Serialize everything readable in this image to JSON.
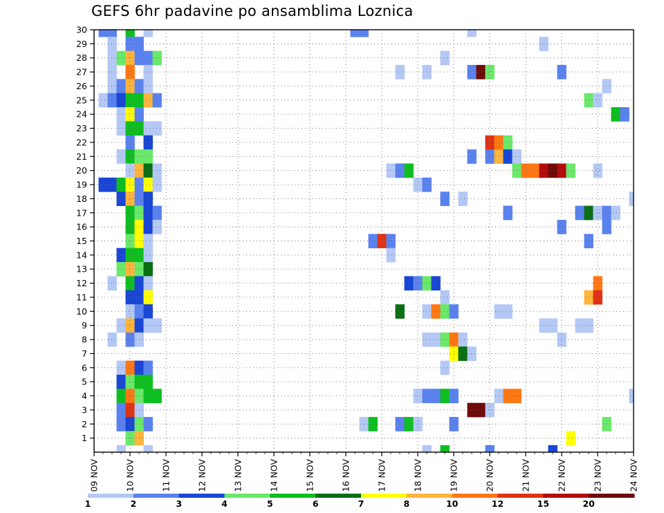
{
  "chart_data": {
    "type": "heatmap",
    "title": "GEFS 6hr padavine po ansamblima Loznica",
    "x_tick_labels": [
      "09 NOV",
      "10 NOV",
      "11 NOV",
      "12 NOV",
      "13 NOV",
      "14 NOV",
      "15 NOV",
      "16 NOV",
      "17 NOV",
      "18 NOV",
      "19 NOV",
      "20 NOV",
      "21 NOV",
      "22 NOV",
      "23 NOV",
      "24 NOV"
    ],
    "xlim": [
      0,
      60
    ],
    "ylim": [
      0,
      30
    ],
    "y_ticks": [
      1,
      2,
      3,
      4,
      5,
      6,
      7,
      8,
      9,
      10,
      11,
      12,
      13,
      14,
      15,
      16,
      17,
      18,
      19,
      20,
      21,
      22,
      23,
      24,
      25,
      26,
      27,
      28,
      29,
      30
    ],
    "x_unit": "6-hour steps since 09 NOV 00Z (4 steps per day)",
    "y_unit": "ensemble member",
    "legend_levels": [
      "1",
      "2",
      "3",
      "4",
      "5",
      "6",
      "7",
      "8",
      "10",
      "12",
      "15",
      "20"
    ],
    "legend_colors": [
      "#b4c8f5",
      "#5a82ee",
      "#1a46d6",
      "#6ae86a",
      "#0ebe20",
      "#0a6e14",
      "#ffff00",
      "#ffb43c",
      "#ff7814",
      "#e03214",
      "#b40a0a",
      "#6e0a0a"
    ],
    "cells": [
      [
        1,
        30,
        1
      ],
      [
        2,
        30,
        1
      ],
      [
        4,
        30,
        4
      ],
      [
        6,
        30,
        0
      ],
      [
        29,
        30,
        1
      ],
      [
        30,
        30,
        1
      ],
      [
        42,
        30,
        0
      ],
      [
        2,
        29,
        0
      ],
      [
        4,
        29,
        1
      ],
      [
        5,
        29,
        1
      ],
      [
        50,
        29,
        0
      ],
      [
        2,
        28,
        0
      ],
      [
        3,
        28,
        3
      ],
      [
        4,
        28,
        7
      ],
      [
        5,
        28,
        1
      ],
      [
        6,
        28,
        1
      ],
      [
        7,
        28,
        3
      ],
      [
        39,
        28,
        0
      ],
      [
        2,
        27,
        0
      ],
      [
        4,
        27,
        8
      ],
      [
        6,
        27,
        0
      ],
      [
        34,
        27,
        0
      ],
      [
        37,
        27,
        0
      ],
      [
        42,
        27,
        1
      ],
      [
        43,
        27,
        11
      ],
      [
        44,
        27,
        3
      ],
      [
        52,
        27,
        1
      ],
      [
        2,
        26,
        0
      ],
      [
        3,
        26,
        1
      ],
      [
        4,
        26,
        7
      ],
      [
        5,
        26,
        1
      ],
      [
        6,
        26,
        0
      ],
      [
        57,
        26,
        0
      ],
      [
        1,
        25,
        0
      ],
      [
        2,
        25,
        1
      ],
      [
        3,
        25,
        2
      ],
      [
        4,
        25,
        4
      ],
      [
        5,
        25,
        4
      ],
      [
        6,
        25,
        7
      ],
      [
        7,
        25,
        1
      ],
      [
        55,
        25,
        3
      ],
      [
        56,
        25,
        0
      ],
      [
        3,
        24,
        0
      ],
      [
        4,
        24,
        6
      ],
      [
        5,
        24,
        1
      ],
      [
        58,
        24,
        4
      ],
      [
        59,
        24,
        1
      ],
      [
        3,
        23,
        0
      ],
      [
        4,
        23,
        4
      ],
      [
        5,
        23,
        4
      ],
      [
        6,
        23,
        0
      ],
      [
        7,
        23,
        0
      ],
      [
        4,
        22,
        1
      ],
      [
        6,
        22,
        2
      ],
      [
        44,
        22,
        9
      ],
      [
        45,
        22,
        8
      ],
      [
        46,
        22,
        3
      ],
      [
        3,
        21,
        0
      ],
      [
        4,
        21,
        4
      ],
      [
        5,
        21,
        3
      ],
      [
        6,
        21,
        3
      ],
      [
        42,
        21,
        1
      ],
      [
        44,
        21,
        1
      ],
      [
        45,
        21,
        7
      ],
      [
        46,
        21,
        2
      ],
      [
        47,
        21,
        0
      ],
      [
        4,
        20,
        0
      ],
      [
        5,
        20,
        7
      ],
      [
        6,
        20,
        5
      ],
      [
        7,
        20,
        0
      ],
      [
        33,
        20,
        0
      ],
      [
        34,
        20,
        1
      ],
      [
        35,
        20,
        4
      ],
      [
        47,
        20,
        3
      ],
      [
        48,
        20,
        8
      ],
      [
        49,
        20,
        8
      ],
      [
        50,
        20,
        10
      ],
      [
        51,
        20,
        11
      ],
      [
        52,
        20,
        10
      ],
      [
        53,
        20,
        3
      ],
      [
        56,
        20,
        0
      ],
      [
        1,
        19,
        2
      ],
      [
        2,
        19,
        2
      ],
      [
        3,
        19,
        4
      ],
      [
        4,
        19,
        6
      ],
      [
        5,
        19,
        1
      ],
      [
        6,
        19,
        6
      ],
      [
        7,
        19,
        0
      ],
      [
        36,
        19,
        0
      ],
      [
        37,
        19,
        1
      ],
      [
        3,
        18,
        2
      ],
      [
        4,
        18,
        7
      ],
      [
        5,
        18,
        1
      ],
      [
        6,
        18,
        2
      ],
      [
        39,
        18,
        1
      ],
      [
        41,
        18,
        0
      ],
      [
        60,
        18,
        0
      ],
      [
        4,
        17,
        4
      ],
      [
        5,
        17,
        3
      ],
      [
        6,
        17,
        2
      ],
      [
        7,
        17,
        1
      ],
      [
        46,
        17,
        1
      ],
      [
        54,
        17,
        1
      ],
      [
        55,
        17,
        5
      ],
      [
        56,
        17,
        0
      ],
      [
        57,
        17,
        1
      ],
      [
        58,
        17,
        0
      ],
      [
        4,
        16,
        4
      ],
      [
        5,
        16,
        6
      ],
      [
        6,
        16,
        2
      ],
      [
        7,
        16,
        0
      ],
      [
        52,
        16,
        1
      ],
      [
        57,
        16,
        1
      ],
      [
        4,
        15,
        3
      ],
      [
        5,
        15,
        6
      ],
      [
        6,
        15,
        0
      ],
      [
        31,
        15,
        1
      ],
      [
        32,
        15,
        9
      ],
      [
        33,
        15,
        1
      ],
      [
        55,
        15,
        1
      ],
      [
        3,
        14,
        2
      ],
      [
        4,
        14,
        4
      ],
      [
        5,
        14,
        4
      ],
      [
        6,
        14,
        0
      ],
      [
        33,
        14,
        0
      ],
      [
        3,
        13,
        3
      ],
      [
        4,
        13,
        7
      ],
      [
        5,
        13,
        3
      ],
      [
        6,
        13,
        5
      ],
      [
        2,
        12,
        0
      ],
      [
        4,
        12,
        4
      ],
      [
        5,
        12,
        2
      ],
      [
        6,
        12,
        0
      ],
      [
        35,
        12,
        2
      ],
      [
        36,
        12,
        1
      ],
      [
        37,
        12,
        3
      ],
      [
        38,
        12,
        2
      ],
      [
        56,
        12,
        8
      ],
      [
        4,
        11,
        2
      ],
      [
        5,
        11,
        2
      ],
      [
        6,
        11,
        6
      ],
      [
        39,
        11,
        0
      ],
      [
        55,
        11,
        7
      ],
      [
        56,
        11,
        9
      ],
      [
        4,
        10,
        0
      ],
      [
        5,
        10,
        1
      ],
      [
        6,
        10,
        2
      ],
      [
        34,
        10,
        5
      ],
      [
        37,
        10,
        0
      ],
      [
        38,
        10,
        8
      ],
      [
        39,
        10,
        3
      ],
      [
        40,
        10,
        1
      ],
      [
        45,
        10,
        0
      ],
      [
        46,
        10,
        0
      ],
      [
        3,
        9,
        0
      ],
      [
        4,
        9,
        7
      ],
      [
        5,
        9,
        2
      ],
      [
        6,
        9,
        0
      ],
      [
        7,
        9,
        0
      ],
      [
        50,
        9,
        0
      ],
      [
        51,
        9,
        0
      ],
      [
        54,
        9,
        0
      ],
      [
        55,
        9,
        0
      ],
      [
        2,
        8,
        0
      ],
      [
        4,
        8,
        1
      ],
      [
        5,
        8,
        0
      ],
      [
        37,
        8,
        0
      ],
      [
        38,
        8,
        0
      ],
      [
        39,
        8,
        3
      ],
      [
        40,
        8,
        8
      ],
      [
        41,
        8,
        0
      ],
      [
        52,
        8,
        0
      ],
      [
        40,
        7,
        6
      ],
      [
        41,
        7,
        5
      ],
      [
        42,
        7,
        0
      ],
      [
        3,
        6,
        0
      ],
      [
        4,
        6,
        8
      ],
      [
        5,
        6,
        2
      ],
      [
        6,
        6,
        1
      ],
      [
        39,
        6,
        0
      ],
      [
        3,
        5,
        2
      ],
      [
        4,
        5,
        3
      ],
      [
        5,
        5,
        4
      ],
      [
        6,
        5,
        4
      ],
      [
        3,
        4,
        4
      ],
      [
        4,
        4,
        8
      ],
      [
        5,
        4,
        3
      ],
      [
        6,
        4,
        4
      ],
      [
        7,
        4,
        4
      ],
      [
        36,
        4,
        0
      ],
      [
        37,
        4,
        1
      ],
      [
        38,
        4,
        1
      ],
      [
        39,
        4,
        4
      ],
      [
        40,
        4,
        1
      ],
      [
        45,
        4,
        0
      ],
      [
        46,
        4,
        8
      ],
      [
        47,
        4,
        8
      ],
      [
        60,
        4,
        0
      ],
      [
        3,
        3,
        1
      ],
      [
        4,
        3,
        9
      ],
      [
        5,
        3,
        0
      ],
      [
        42,
        3,
        11
      ],
      [
        43,
        3,
        11
      ],
      [
        44,
        3,
        0
      ],
      [
        3,
        2,
        1
      ],
      [
        4,
        2,
        2
      ],
      [
        5,
        2,
        3
      ],
      [
        6,
        2,
        1
      ],
      [
        30,
        2,
        0
      ],
      [
        31,
        2,
        4
      ],
      [
        34,
        2,
        1
      ],
      [
        35,
        2,
        4
      ],
      [
        36,
        2,
        0
      ],
      [
        40,
        2,
        1
      ],
      [
        57,
        2,
        3
      ],
      [
        4,
        1,
        3
      ],
      [
        5,
        1,
        7
      ],
      [
        53,
        1,
        6
      ],
      [
        3,
        0,
        0
      ],
      [
        6,
        0,
        0
      ],
      [
        37,
        0,
        0
      ],
      [
        39,
        0,
        4
      ],
      [
        44,
        0,
        1
      ],
      [
        51,
        0,
        2
      ]
    ]
  }
}
